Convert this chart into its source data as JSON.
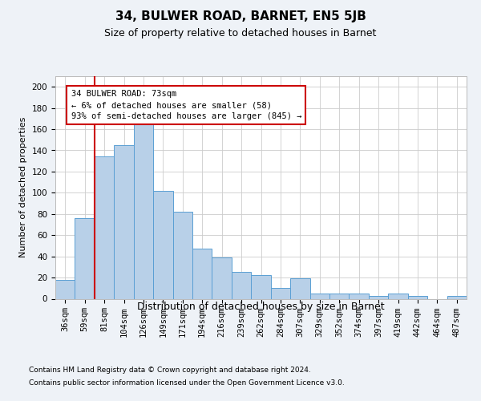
{
  "title1": "34, BULWER ROAD, BARNET, EN5 5JB",
  "title2": "Size of property relative to detached houses in Barnet",
  "xlabel": "Distribution of detached houses by size in Barnet",
  "ylabel": "Number of detached properties",
  "categories": [
    "36sqm",
    "59sqm",
    "81sqm",
    "104sqm",
    "126sqm",
    "149sqm",
    "171sqm",
    "194sqm",
    "216sqm",
    "239sqm",
    "262sqm",
    "284sqm",
    "307sqm",
    "329sqm",
    "352sqm",
    "374sqm",
    "397sqm",
    "419sqm",
    "442sqm",
    "464sqm",
    "487sqm"
  ],
  "values": [
    18,
    76,
    134,
    145,
    165,
    102,
    82,
    47,
    39,
    25,
    22,
    10,
    19,
    5,
    5,
    5,
    3,
    5,
    3,
    0,
    3
  ],
  "bar_color": "#b8d0e8",
  "bar_edge_color": "#5a9fd4",
  "ylim": [
    0,
    210
  ],
  "yticks": [
    0,
    20,
    40,
    60,
    80,
    100,
    120,
    140,
    160,
    180,
    200
  ],
  "red_line_color": "#cc0000",
  "annotation_title": "34 BULWER ROAD: 73sqm",
  "annotation_line1": "← 6% of detached houses are smaller (58)",
  "annotation_line2": "93% of semi-detached houses are larger (845) →",
  "annotation_box_color": "#ffffff",
  "annotation_box_edge": "#cc0000",
  "footnote1": "Contains HM Land Registry data © Crown copyright and database right 2024.",
  "footnote2": "Contains public sector information licensed under the Open Government Licence v3.0.",
  "background_color": "#eef2f7",
  "plot_bg_color": "#ffffff",
  "title1_fontsize": 11,
  "title2_fontsize": 9,
  "ylabel_fontsize": 8,
  "xlabel_fontsize": 9,
  "tick_fontsize": 7.5,
  "footnote_fontsize": 6.5
}
